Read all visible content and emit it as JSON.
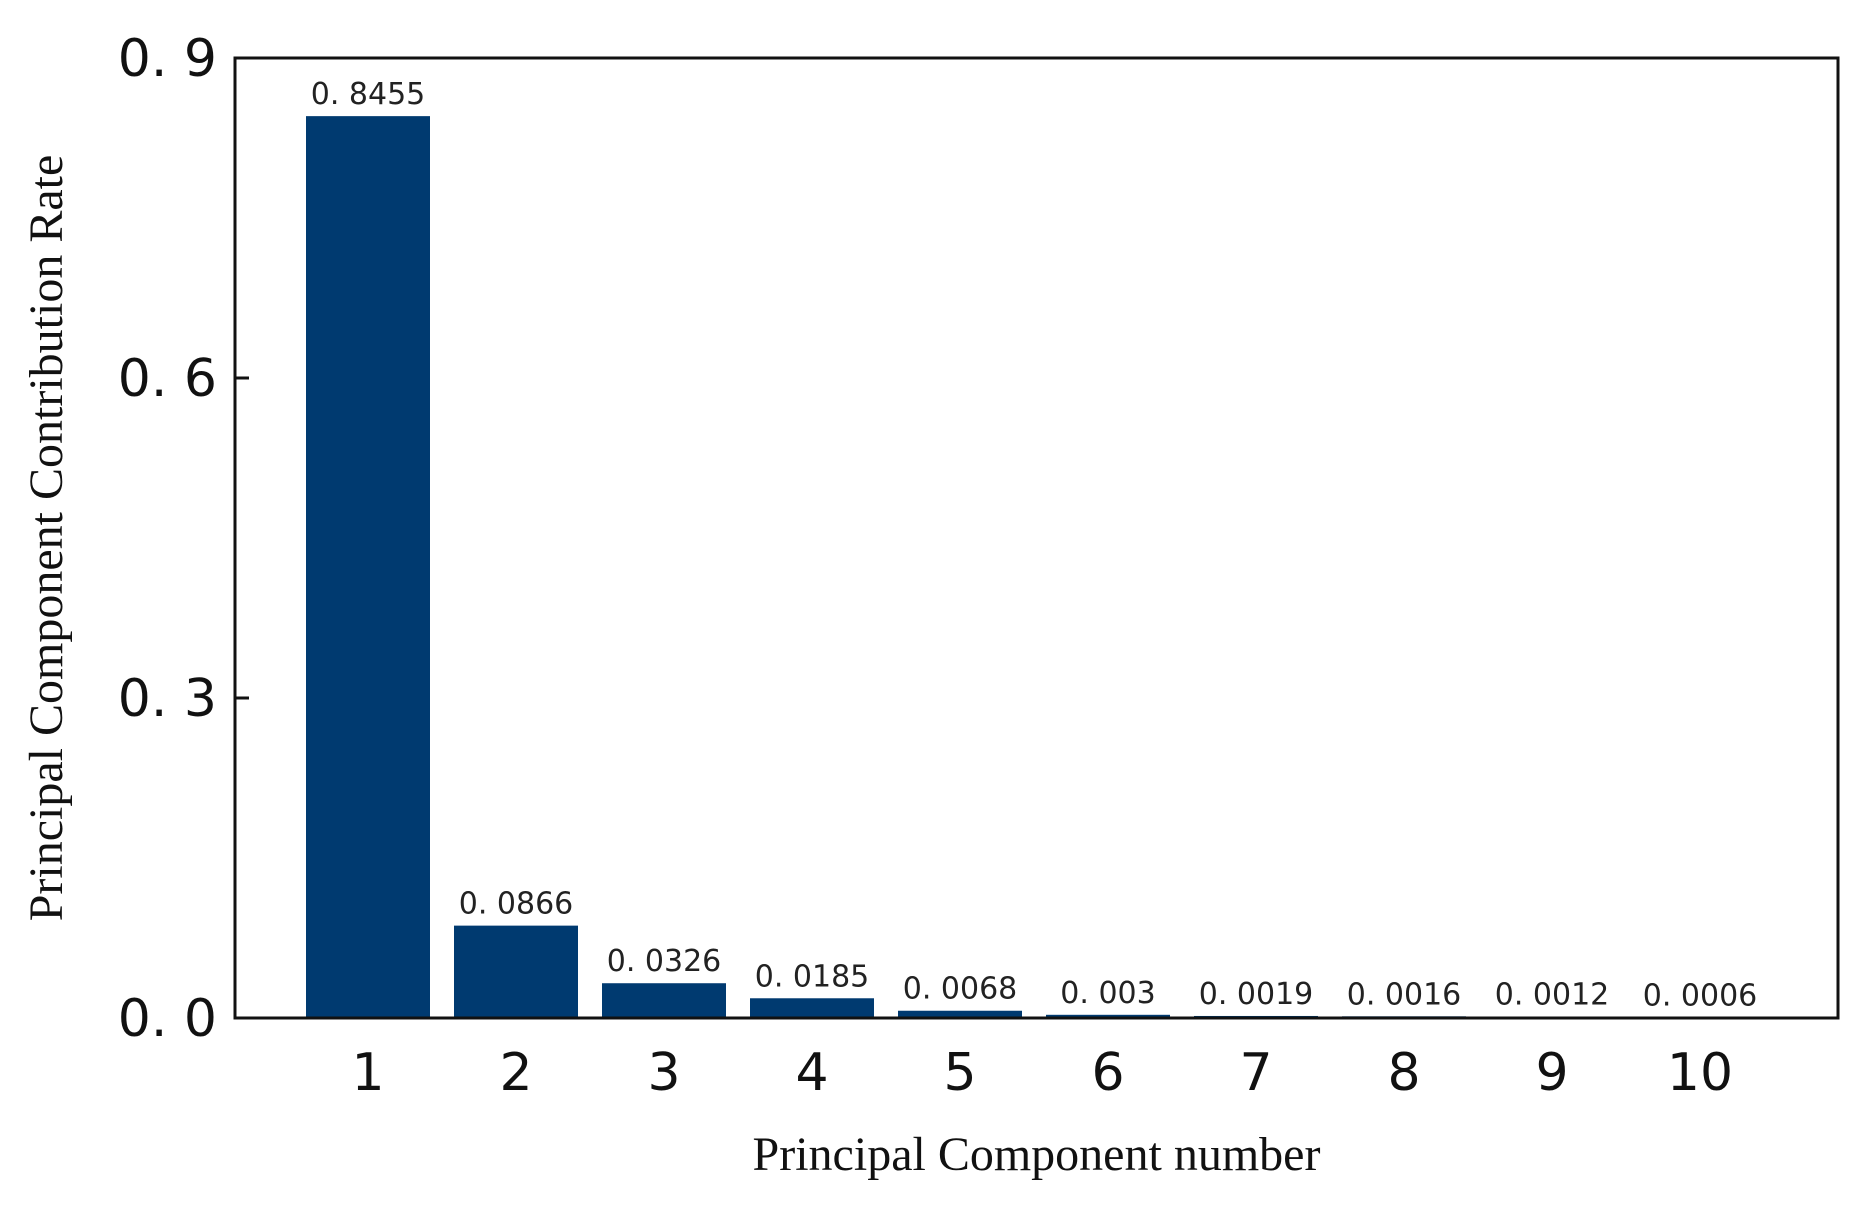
{
  "chart_data": {
    "type": "bar",
    "title": "",
    "xlabel": "Principal Component number",
    "ylabel": "Principal Component Contribution Rate",
    "categories": [
      "1",
      "2",
      "3",
      "4",
      "5",
      "6",
      "7",
      "8",
      "9",
      "10"
    ],
    "values": [
      0.8455,
      0.0866,
      0.0326,
      0.0185,
      0.0068,
      0.003,
      0.0019,
      0.0016,
      0.0012,
      0.0006
    ],
    "value_labels": [
      "0. 8455",
      "0. 0866",
      "0. 0326",
      "0. 0185",
      "0. 0068",
      "0. 003",
      "0. 0019",
      "0. 0016",
      "0. 0012",
      "0. 0006"
    ],
    "ylim": [
      0,
      0.9
    ],
    "yticks": [
      0.0,
      0.3,
      0.6,
      0.9
    ],
    "ytick_labels": [
      "0. 0",
      "0. 3",
      "0. 6",
      "0. 9"
    ],
    "grid": false,
    "legend": "none",
    "bar_color": "#003a70"
  }
}
